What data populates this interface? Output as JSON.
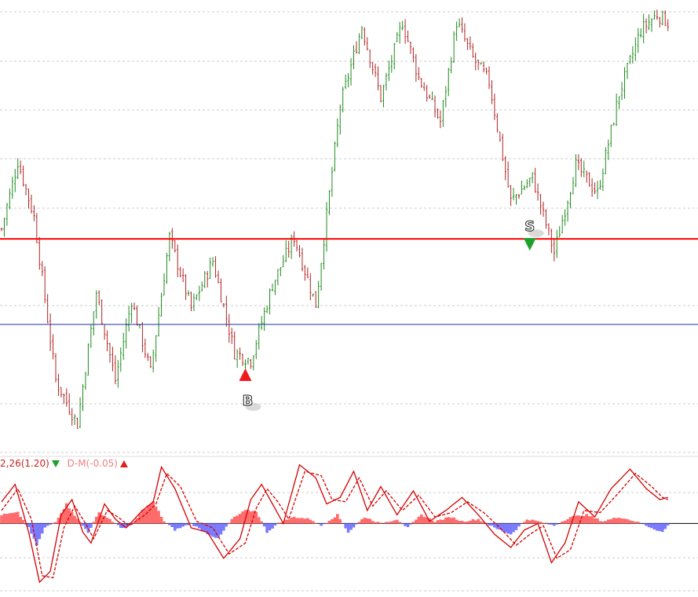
{
  "colors": {
    "up": "#1e8a1e",
    "down": "#b22222",
    "level_line": "#ff0000",
    "reference_line": "#1f2fa0",
    "grid": "#cccccc",
    "osc_main": "#d40000",
    "osc_signal": "#d40000",
    "hist_pos": "#ff6b6b",
    "hist_neg": "#7a7aff",
    "buy_marker": "#ee1c1c",
    "sell_marker": "#1fa02a"
  },
  "icons": {
    "buy": "up-triangle-icon",
    "sell": "down-triangle-icon"
  },
  "signals": {
    "buy_label": "B",
    "sell_label": "S"
  },
  "legend": {
    "main_label": "2,26(1.20)",
    "dm_label": "D-M(-0.05)"
  },
  "chart_data": [
    {
      "type": "candlestick",
      "panel": "price",
      "title": "",
      "xlabel": "",
      "ylabel": "",
      "grid": true,
      "ylim": [
        0,
        100
      ],
      "horizontal_lines": [
        {
          "name": "",
          "value": 41.5
        },
        {
          "name": "",
          "value": 20.0
        }
      ],
      "anchors": [
        [
          0,
          44
        ],
        [
          6,
          61
        ],
        [
          12,
          47
        ],
        [
          20,
          6
        ],
        [
          28,
          -5
        ],
        [
          35,
          28
        ],
        [
          42,
          6
        ],
        [
          48,
          26
        ],
        [
          55,
          8
        ],
        [
          62,
          42
        ],
        [
          70,
          24
        ],
        [
          78,
          36
        ],
        [
          86,
          13
        ],
        [
          92,
          11
        ],
        [
          100,
          30
        ],
        [
          108,
          42
        ],
        [
          116,
          25
        ],
        [
          125,
          75
        ],
        [
          133,
          95
        ],
        [
          140,
          77
        ],
        [
          148,
          96
        ],
        [
          154,
          82
        ],
        [
          162,
          71
        ],
        [
          168,
          96
        ],
        [
          174,
          87
        ],
        [
          180,
          81
        ],
        [
          188,
          51
        ],
        [
          196,
          57
        ],
        [
          204,
          38
        ],
        [
          212,
          60
        ],
        [
          220,
          53
        ],
        [
          228,
          78
        ],
        [
          236,
          94
        ],
        [
          242,
          98
        ],
        [
          246,
          96
        ]
      ],
      "signals": [
        {
          "label": "B",
          "direction": "buy",
          "index": 90
        },
        {
          "label": "S",
          "direction": "sell",
          "index": 195
        }
      ]
    },
    {
      "type": "line",
      "panel": "oscillator",
      "title": "",
      "grid": true,
      "ylim": [
        -1.6,
        1.2
      ],
      "zero_line": 0,
      "series": [
        {
          "name": "2,26(1.20)",
          "style": "solid",
          "anchors": [
            [
              0,
              0.5
            ],
            [
              5,
              0.9
            ],
            [
              10,
              -0.2
            ],
            [
              14,
              -1.35
            ],
            [
              18,
              -1.1
            ],
            [
              22,
              0.2
            ],
            [
              26,
              0.55
            ],
            [
              30,
              -0.2
            ],
            [
              33,
              -0.45
            ],
            [
              38,
              0.45
            ],
            [
              42,
              0.1
            ],
            [
              46,
              -0.1
            ],
            [
              52,
              0.3
            ],
            [
              56,
              0.5
            ],
            [
              59,
              1.3
            ],
            [
              64,
              0.8
            ],
            [
              70,
              -0.1
            ],
            [
              76,
              -0.2
            ],
            [
              82,
              -0.8
            ],
            [
              88,
              -0.35
            ],
            [
              92,
              0.55
            ],
            [
              96,
              0.9
            ],
            [
              100,
              0.45
            ],
            [
              104,
              0.0
            ],
            [
              110,
              1.35
            ],
            [
              116,
              1.05
            ],
            [
              120,
              0.45
            ],
            [
              125,
              0.6
            ],
            [
              130,
              1.2
            ],
            [
              135,
              0.3
            ],
            [
              140,
              0.85
            ],
            [
              146,
              0.2
            ],
            [
              152,
              0.75
            ],
            [
              158,
              0.05
            ],
            [
              164,
              0.3
            ],
            [
              170,
              0.6
            ],
            [
              176,
              0.2
            ],
            [
              182,
              -0.25
            ],
            [
              188,
              -0.55
            ],
            [
              193,
              -0.15
            ],
            [
              198,
              0.0
            ],
            [
              203,
              -0.9
            ],
            [
              208,
              -0.45
            ],
            [
              213,
              0.5
            ],
            [
              219,
              0.15
            ],
            [
              225,
              0.8
            ],
            [
              232,
              1.25
            ],
            [
              238,
              0.8
            ],
            [
              243,
              0.55
            ],
            [
              246,
              0.6
            ]
          ]
        },
        {
          "name": "",
          "style": "dashed",
          "anchors": [
            [
              0,
              0.3
            ],
            [
              6,
              0.8
            ],
            [
              11,
              0.1
            ],
            [
              15,
              -1.2
            ],
            [
              19,
              -1.25
            ],
            [
              23,
              -0.1
            ],
            [
              27,
              0.4
            ],
            [
              31,
              0.0
            ],
            [
              34,
              -0.35
            ],
            [
              39,
              0.3
            ],
            [
              43,
              0.15
            ],
            [
              47,
              -0.05
            ],
            [
              53,
              0.2
            ],
            [
              57,
              0.45
            ],
            [
              61,
              1.15
            ],
            [
              66,
              0.85
            ],
            [
              72,
              0.05
            ],
            [
              78,
              -0.1
            ],
            [
              84,
              -0.7
            ],
            [
              90,
              -0.45
            ],
            [
              94,
              0.35
            ],
            [
              98,
              0.8
            ],
            [
              102,
              0.5
            ],
            [
              106,
              0.1
            ],
            [
              112,
              1.2
            ],
            [
              118,
              1.1
            ],
            [
              122,
              0.55
            ],
            [
              127,
              0.5
            ],
            [
              132,
              1.05
            ],
            [
              137,
              0.4
            ],
            [
              142,
              0.75
            ],
            [
              148,
              0.3
            ],
            [
              154,
              0.65
            ],
            [
              160,
              0.15
            ],
            [
              166,
              0.25
            ],
            [
              172,
              0.5
            ],
            [
              178,
              0.25
            ],
            [
              184,
              -0.1
            ],
            [
              190,
              -0.5
            ],
            [
              195,
              -0.25
            ],
            [
              200,
              -0.05
            ],
            [
              205,
              -0.8
            ],
            [
              210,
              -0.6
            ],
            [
              215,
              0.3
            ],
            [
              221,
              0.25
            ],
            [
              227,
              0.65
            ],
            [
              234,
              1.15
            ],
            [
              240,
              0.85
            ],
            [
              244,
              0.6
            ],
            [
              246,
              0.55
            ]
          ]
        }
      ],
      "histogram_anchors": [
        [
          0,
          0.2
        ],
        [
          6,
          0.25
        ],
        [
          10,
          -0.1
        ],
        [
          13,
          -0.5
        ],
        [
          16,
          -0.1
        ],
        [
          20,
          0.05
        ],
        [
          24,
          0.45
        ],
        [
          28,
          0.1
        ],
        [
          32,
          -0.2
        ],
        [
          36,
          0.25
        ],
        [
          40,
          0.1
        ],
        [
          44,
          -0.1
        ],
        [
          48,
          -0.05
        ],
        [
          52,
          0.3
        ],
        [
          56,
          0.5
        ],
        [
          60,
          0.05
        ],
        [
          64,
          -0.15
        ],
        [
          70,
          0.0
        ],
        [
          75,
          -0.2
        ],
        [
          80,
          -0.35
        ],
        [
          85,
          0.1
        ],
        [
          90,
          0.3
        ],
        [
          94,
          0.28
        ],
        [
          98,
          -0.2
        ],
        [
          102,
          0.0
        ],
        [
          108,
          0.15
        ],
        [
          114,
          0.1
        ],
        [
          118,
          -0.05
        ],
        [
          124,
          0.2
        ],
        [
          128,
          -0.2
        ],
        [
          134,
          0.15
        ],
        [
          140,
          0.0
        ],
        [
          146,
          0.1
        ],
        [
          150,
          -0.1
        ],
        [
          155,
          0.2
        ],
        [
          160,
          0.05
        ],
        [
          166,
          0.15
        ],
        [
          170,
          0.05
        ],
        [
          176,
          0.1
        ],
        [
          182,
          -0.1
        ],
        [
          188,
          -0.25
        ],
        [
          194,
          0.1
        ],
        [
          198,
          0.05
        ],
        [
          204,
          -0.05
        ],
        [
          210,
          0.15
        ],
        [
          216,
          0.2
        ],
        [
          222,
          0.05
        ],
        [
          228,
          0.15
        ],
        [
          234,
          0.05
        ],
        [
          240,
          -0.1
        ],
        [
          244,
          -0.2
        ],
        [
          246,
          -0.05
        ]
      ]
    }
  ]
}
